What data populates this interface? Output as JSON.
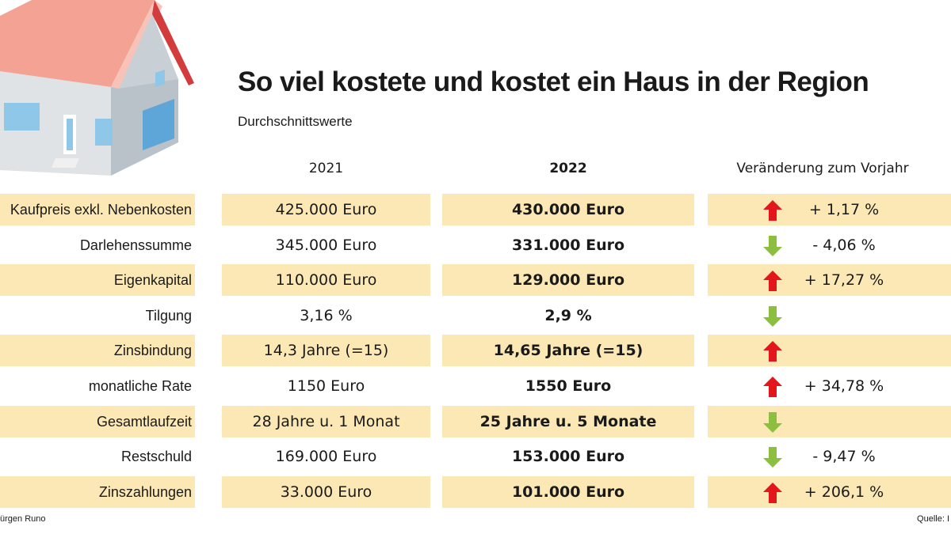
{
  "title": "So viel kostete und kostet ein Haus in der Region",
  "subtitle": "Durchschnittswerte",
  "footer": {
    "left": "ürgen Runo",
    "right": "Quelle: I"
  },
  "colors": {
    "shade": "#fbe8b5",
    "up": "#e3161c",
    "down": "#8cbf3f"
  },
  "chart_data": {
    "type": "table",
    "columns": [
      "",
      "2021",
      "2022",
      "Veränderung zum Vorjahr"
    ],
    "rows": [
      {
        "label": "Kaufpreis exkl. Nebenkosten",
        "y2021": "425.000 Euro",
        "y2022": "430.000 Euro",
        "trend": "up",
        "change": "+ 1,17 %"
      },
      {
        "label": "Darlehenssumme",
        "y2021": "345.000 Euro",
        "y2022": "331.000 Euro",
        "trend": "down",
        "change": "- 4,06 %"
      },
      {
        "label": "Eigenkapital",
        "y2021": "110.000 Euro",
        "y2022": "129.000 Euro",
        "trend": "up",
        "change": "+ 17,27 %"
      },
      {
        "label": "Tilgung",
        "y2021": "3,16 %",
        "y2022": "2,9 %",
        "trend": "down",
        "change": ""
      },
      {
        "label": "Zinsbindung",
        "y2021": "14,3 Jahre (=15)",
        "y2022": "14,65 Jahre (=15)",
        "trend": "up",
        "change": ""
      },
      {
        "label": "monatliche Rate",
        "y2021": "1150 Euro",
        "y2022": "1550 Euro",
        "trend": "up",
        "change": "+ 34,78 %"
      },
      {
        "label": "Gesamtlaufzeit",
        "y2021": "28 Jahre u. 1 Monat",
        "y2022": "25 Jahre u. 5 Monate",
        "trend": "down",
        "change": ""
      },
      {
        "label": "Restschuld",
        "y2021": "169.000 Euro",
        "y2022": "153.000 Euro",
        "trend": "down",
        "change": "- 9,47 %"
      },
      {
        "label": "Zinszahlungen",
        "y2021": "33.000 Euro",
        "y2022": "101.000 Euro",
        "trend": "up",
        "change": "+ 206,1 %"
      }
    ]
  }
}
